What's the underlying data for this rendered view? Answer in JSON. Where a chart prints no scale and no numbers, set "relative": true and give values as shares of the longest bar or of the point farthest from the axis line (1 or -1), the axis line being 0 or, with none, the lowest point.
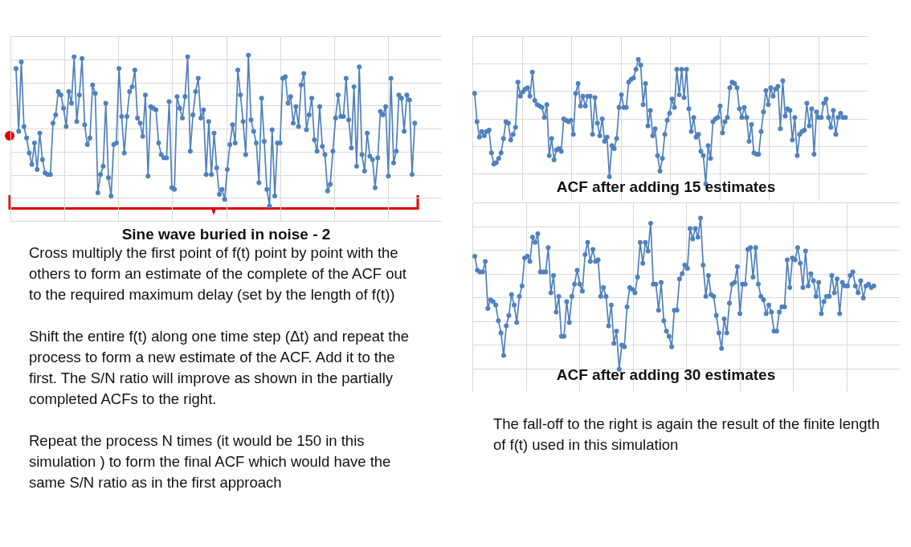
{
  "chart_data": [
    {
      "type": "line",
      "title": "Sine wave buried in noise - 2",
      "relative": true,
      "grid": true,
      "marker": "circle",
      "color": "#4f81bd",
      "annotations": [
        "Cross multiply the first point of f(t) point by point with the others to form an estimate of the complete of the ACF out to the required maximum delay (set by the length of f(t))",
        "Shift the entire f(t) along one time step (Δt) and repeat the process to form a new estimate of the ACF. Add it to the first. The S/N ratio will improve as shown in the partially completed ACFs to the right.",
        "Repeat the process N times (it would be 150 in this simulation ) to form the final ACF which would have the same S/N ratio as in the first approach"
      ],
      "categories": [
        null,
        null,
        null,
        null,
        null,
        null,
        null,
        null,
        null,
        null,
        null,
        null,
        null,
        null,
        null,
        null,
        null,
        null,
        null,
        null,
        null,
        null,
        null,
        null,
        null,
        null,
        null,
        null,
        null,
        null,
        null,
        null,
        null,
        null,
        null,
        null,
        null,
        null,
        null,
        null,
        null,
        null,
        null,
        null,
        null,
        null,
        null,
        null,
        null,
        null,
        null,
        null,
        null,
        null,
        null,
        null,
        null,
        null,
        null,
        null,
        null,
        null,
        null,
        null,
        null,
        null,
        null,
        null,
        null,
        null,
        null,
        null,
        null,
        null,
        null,
        null,
        null,
        null,
        null,
        null,
        null,
        null,
        null,
        null,
        null,
        null,
        null,
        null,
        null,
        null,
        null,
        null,
        null,
        null,
        null,
        null,
        null,
        null,
        null,
        null,
        null,
        null,
        null,
        null,
        null,
        null,
        null,
        null,
        null,
        null,
        null,
        null,
        null,
        null,
        null,
        null,
        null,
        null,
        null,
        null,
        null,
        null,
        null,
        null,
        null,
        null,
        null,
        null,
        null,
        null,
        null,
        null,
        null,
        null,
        null,
        null,
        null,
        null,
        null,
        null,
        null,
        null,
        null,
        null,
        null,
        null,
        null,
        null,
        null,
        null,
        null,
        null
      ],
      "values": [
        0.92,
        0.54,
        0.96,
        0.57,
        0.5,
        0.41,
        0.34,
        0.47,
        0.31,
        0.53,
        0.37,
        0.29,
        0.28,
        0.28,
        0.59,
        0.64,
        0.78,
        0.76,
        0.68,
        0.57,
        0.78,
        0.71,
        0.99,
        0.6,
        0.76,
        0.98,
        0.58,
        0.46,
        0.5,
        0.82,
        0.77,
        0.17,
        0.28,
        0.33,
        0.71,
        0.26,
        0.15,
        0.46,
        0.47,
        0.92,
        0.63,
        0.41,
        0.63,
        0.78,
        0.81,
        0.91,
        0.62,
        0.59,
        0.51,
        0.76,
        0.27,
        0.69,
        0.68,
        0.67,
        0.47,
        0.4,
        0.38,
        0.38,
        0.72,
        0.2,
        0.19,
        0.75,
        0.68,
        0.62,
        0.75,
        0.99,
        0.42,
        0.64,
        0.78,
        0.86,
        0.62,
        0.67,
        0.28,
        0.6,
        0.28,
        0.53,
        0.32,
        0.16,
        0.19,
        0.13,
        0.31,
        0.46,
        0.58,
        0.47,
        0.91,
        0.76,
        0.6,
        0.4,
        1,
        0.61,
        0.54,
        0.47,
        0.23,
        0.74,
        0.48,
        0.19,
        0.09,
        0.55,
        0.15,
        0.47,
        0.47,
        0.86,
        0.87,
        0.71,
        0.75,
        0.59,
        0.69,
        0.57,
        0.82,
        0.89,
        0.55,
        0.64,
        0.74,
        0.49,
        0.42,
        0.69,
        0.45,
        0.4,
        0.18,
        0.22,
        0.42,
        0.62,
        0.76,
        0.63,
        0.63,
        0.86,
        0.61,
        0.44,
        0.81,
        0.33,
        0.93,
        0.4,
        0.3,
        0.53,
        0.39,
        0.37,
        0.2,
        0.38,
        0.66,
        0.64,
        0.69,
        0.27,
        0.86,
        0.35,
        0.42,
        0.76,
        0.74,
        0.54,
        0.76,
        0.73,
        0.28,
        0.59
      ]
    },
    {
      "type": "line",
      "title": "ACF after adding 15 estimates",
      "relative": true,
      "grid": true,
      "marker": "circle",
      "color": "#4f81bd",
      "categories": [
        null,
        null,
        null,
        null,
        null,
        null,
        null,
        null,
        null,
        null,
        null,
        null,
        null,
        null,
        null,
        null,
        null,
        null,
        null,
        null,
        null,
        null,
        null,
        null,
        null,
        null,
        null,
        null,
        null,
        null,
        null,
        null,
        null,
        null,
        null,
        null,
        null,
        null,
        null,
        null,
        null,
        null,
        null,
        null,
        null,
        null,
        null,
        null,
        null,
        null,
        null,
        null,
        null,
        null,
        null,
        null,
        null,
        null,
        null,
        null,
        null,
        null,
        null,
        null,
        null,
        null,
        null,
        null,
        null,
        null,
        null,
        null,
        null,
        null,
        null,
        null,
        null,
        null,
        null,
        null,
        null,
        null,
        null,
        null,
        null,
        null,
        null,
        null,
        null,
        null,
        null,
        null,
        null,
        null,
        null,
        null,
        null,
        null,
        null,
        null,
        null,
        null,
        null,
        null,
        null,
        null,
        null,
        null,
        null,
        null,
        null,
        null,
        null,
        null,
        null,
        null,
        null,
        null,
        null,
        null,
        null,
        null,
        null,
        null,
        null,
        null,
        null,
        null,
        null,
        null,
        null,
        null,
        null,
        null,
        null,
        null,
        null,
        null,
        null,
        null,
        null,
        null,
        null,
        null,
        null,
        null,
        null,
        null,
        null,
        null,
        null,
        null,
        null,
        null,
        null
      ],
      "values": [
        0.76,
        0.56,
        0.45,
        0.49,
        0.46,
        0.49,
        0.5,
        0.34,
        0.26,
        0.27,
        0.3,
        0.34,
        0.44,
        0.56,
        0.55,
        0.43,
        0.47,
        0.52,
        0.84,
        0.74,
        0.77,
        0.79,
        0.8,
        0.74,
        0.91,
        0.71,
        0.68,
        0.67,
        0.66,
        0.59,
        0.68,
        0.32,
        0.44,
        0.29,
        0.36,
        0.37,
        0.35,
        0.58,
        0.57,
        0.56,
        0.57,
        0.47,
        0.76,
        0.83,
        0.67,
        0.74,
        0.67,
        0.74,
        0.74,
        0.47,
        0.73,
        0.55,
        0.46,
        0.58,
        0.42,
        0.45,
        0.17,
        0.39,
        0.37,
        0.44,
        0.66,
        0.75,
        0.66,
        0.66,
        0.84,
        0.86,
        0.87,
        0.93,
        1,
        0.96,
        0.68,
        0.83,
        0.53,
        0.64,
        0.46,
        0.51,
        0.32,
        0.21,
        0.3,
        0.47,
        0.57,
        0.62,
        0.72,
        0.66,
        0.93,
        0.75,
        0.93,
        0.73,
        0.93,
        0.65,
        0.49,
        0.59,
        0.45,
        0.47,
        0.35,
        0.32,
        0.12,
        0.39,
        0.3,
        0.56,
        0.58,
        0.59,
        0.67,
        0.48,
        0.56,
        0.59,
        0.8,
        0.84,
        0.83,
        0.8,
        0.65,
        0.59,
        0.66,
        0.59,
        0.42,
        0.54,
        0.34,
        0.33,
        0.33,
        0.49,
        0.63,
        0.78,
        0.68,
        0.8,
        0.74,
        0.79,
        0.81,
        0.51,
        0.85,
        0.6,
        0.65,
        0.64,
        0.43,
        0.59,
        0.32,
        0.47,
        0.49,
        0.5,
        0.69,
        0.53,
        0.65,
        0.33,
        0.63,
        0.59,
        0.59,
        0.69,
        0.72,
        0.59,
        0.52,
        0.64,
        0.47,
        0.59,
        0.62,
        0.59,
        0.59
      ]
    },
    {
      "type": "line",
      "title": "ACF after adding 30 estimates",
      "relative": true,
      "grid": true,
      "marker": "circle",
      "color": "#4f81bd",
      "annotations": [
        "The fall-off to the right is again the result of the finite length of f(t) used in this simulation"
      ],
      "categories": [
        null,
        null,
        null,
        null,
        null,
        null,
        null,
        null,
        null,
        null,
        null,
        null,
        null,
        null,
        null,
        null,
        null,
        null,
        null,
        null,
        null,
        null,
        null,
        null,
        null,
        null,
        null,
        null,
        null,
        null,
        null,
        null,
        null,
        null,
        null,
        null,
        null,
        null,
        null,
        null,
        null,
        null,
        null,
        null,
        null,
        null,
        null,
        null,
        null,
        null,
        null,
        null,
        null,
        null,
        null,
        null,
        null,
        null,
        null,
        null,
        null,
        null,
        null,
        null,
        null,
        null,
        null,
        null,
        null,
        null,
        null,
        null,
        null,
        null,
        null,
        null,
        null,
        null,
        null,
        null,
        null,
        null,
        null,
        null,
        null,
        null,
        null,
        null,
        null,
        null,
        null,
        null,
        null,
        null,
        null,
        null,
        null,
        null,
        null,
        null,
        null,
        null,
        null,
        null,
        null,
        null,
        null,
        null,
        null,
        null,
        null,
        null,
        null,
        null,
        null,
        null,
        null,
        null,
        null,
        null,
        null,
        null,
        null,
        null,
        null,
        null,
        null,
        null,
        null,
        null,
        null,
        null,
        null,
        null,
        null,
        null,
        null,
        null,
        null,
        null,
        null,
        null,
        null,
        null,
        null,
        null,
        null,
        null,
        null,
        null,
        null,
        null,
        null
      ],
      "values": [
        0.78,
        0.7,
        0.69,
        0.69,
        0.75,
        0.48,
        0.53,
        0.52,
        0.5,
        0.41,
        0.34,
        0.21,
        0.38,
        0.44,
        0.56,
        0.5,
        0.4,
        0.55,
        0.61,
        0.77,
        0.78,
        0.75,
        0.89,
        0.86,
        0.91,
        0.69,
        0.69,
        0.69,
        0.83,
        0.57,
        0.67,
        0.46,
        0.55,
        0.32,
        0.32,
        0.52,
        0.4,
        0.55,
        0.62,
        0.7,
        0.62,
        0.58,
        0.79,
        0.86,
        0.75,
        0.82,
        0.75,
        0.76,
        0.55,
        0.6,
        0.55,
        0.38,
        0.5,
        0.28,
        0.35,
        0.13,
        0.27,
        0.26,
        0.49,
        0.6,
        0.59,
        0.57,
        0.66,
        0.86,
        0.74,
        0.86,
        0.81,
        0.97,
        0.62,
        0.62,
        0.47,
        0.63,
        0.41,
        0.35,
        0.32,
        0.26,
        0.47,
        0.47,
        0.65,
        0.68,
        0.73,
        0.71,
        0.94,
        0.88,
        0.94,
        0.89,
        1,
        0.73,
        0.55,
        0.67,
        0.56,
        0.55,
        0.44,
        0.34,
        0.25,
        0.42,
        0.34,
        0.51,
        0.62,
        0.63,
        0.72,
        0.45,
        0.62,
        0.62,
        0.82,
        0.83,
        0.66,
        0.83,
        0.62,
        0.55,
        0.53,
        0.45,
        0.5,
        0.46,
        0.35,
        0.35,
        0.46,
        0.49,
        0.49,
        0.76,
        0.6,
        0.77,
        0.76,
        0.83,
        0.74,
        0.6,
        0.81,
        0.61,
        0.68,
        0.64,
        0.55,
        0.63,
        0.45,
        0.52,
        0.55,
        0.55,
        0.67,
        0.57,
        0.65,
        0.45,
        0.63,
        0.61,
        0.61,
        0.67,
        0.69,
        0.61,
        0.57,
        0.64,
        0.54,
        0.61,
        0.62,
        0.6,
        0.61
      ]
    }
  ]
}
